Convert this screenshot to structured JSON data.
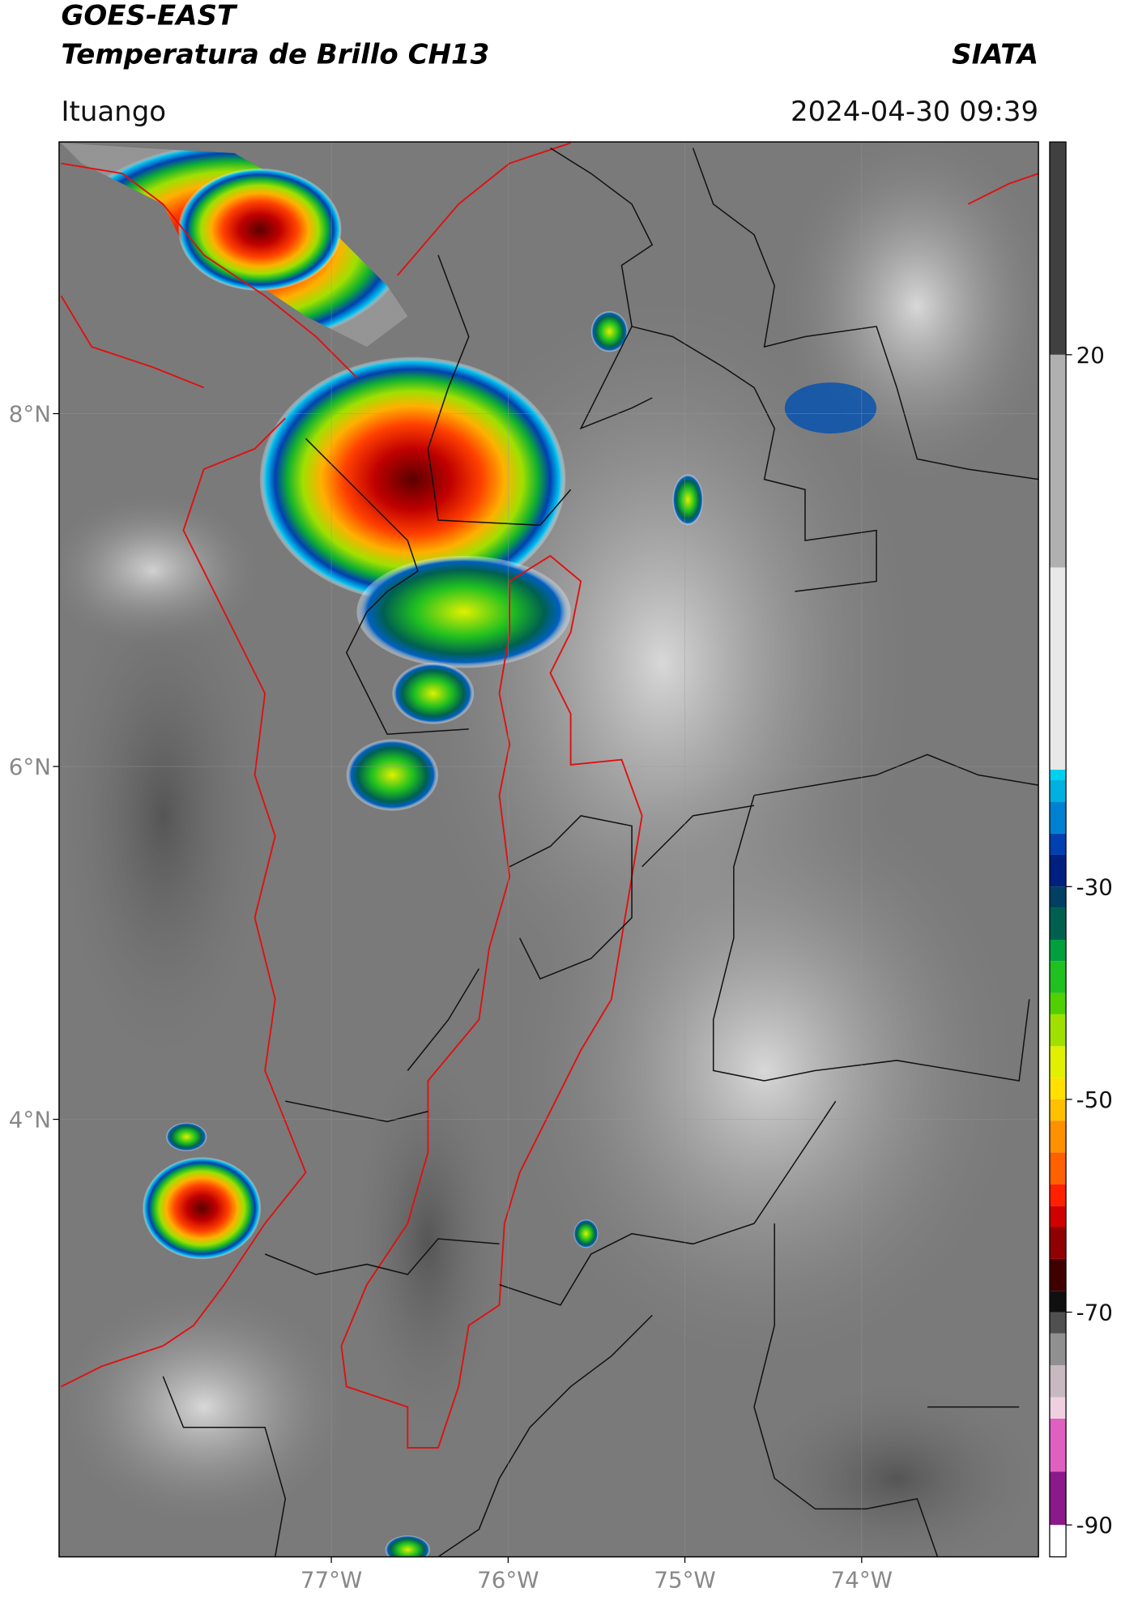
{
  "header": {
    "satellite": "GOES-EAST",
    "product": "Temperatura de Brillo CH13",
    "agency": "SIATA",
    "region": "Ituango",
    "timestamp": "2024-04-30 09:39"
  },
  "map": {
    "xlim": [
      -78.54,
      -73.0
    ],
    "ylim": [
      1.52,
      9.54
    ],
    "xticks": [
      {
        "value": -77,
        "label": "77°W"
      },
      {
        "value": -76,
        "label": "76°W"
      },
      {
        "value": -75,
        "label": "75°W"
      },
      {
        "value": -74,
        "label": "74°W"
      }
    ],
    "yticks": [
      {
        "value": 8,
        "label": "8°N"
      },
      {
        "value": 6,
        "label": "6°N"
      },
      {
        "value": 4,
        "label": "4°N"
      }
    ]
  },
  "colorbar": {
    "lim": [
      -93,
      40
    ],
    "ticks": [
      20,
      -30,
      -50,
      -70,
      -90
    ],
    "levels": [
      -93,
      -90,
      -85,
      -80,
      -78,
      -75,
      -72,
      -70,
      -68,
      -65,
      -62,
      -60,
      -58,
      -55,
      -52,
      -50,
      -48,
      -45,
      -42,
      -40,
      -37,
      -35,
      -32,
      -30,
      -27,
      -25,
      -22,
      -20,
      -19,
      0,
      20,
      40
    ],
    "colors": [
      "#ffffff",
      "#8a1a8a",
      "#e060c0",
      "#f0d0e0",
      "#c8b8c0",
      "#909090",
      "#505050",
      "#101010",
      "#400000",
      "#900000",
      "#d00000",
      "#ff2000",
      "#ff6000",
      "#ff9000",
      "#ffc000",
      "#ffe000",
      "#e0f000",
      "#a0e000",
      "#50d000",
      "#20c020",
      "#00a040",
      "#006050",
      "#004060",
      "#002080",
      "#0040b0",
      "#0080d0",
      "#00b0e0",
      "#00d0f0",
      "#e8e8e8",
      "#b0b0b0",
      "#404040"
    ]
  }
}
